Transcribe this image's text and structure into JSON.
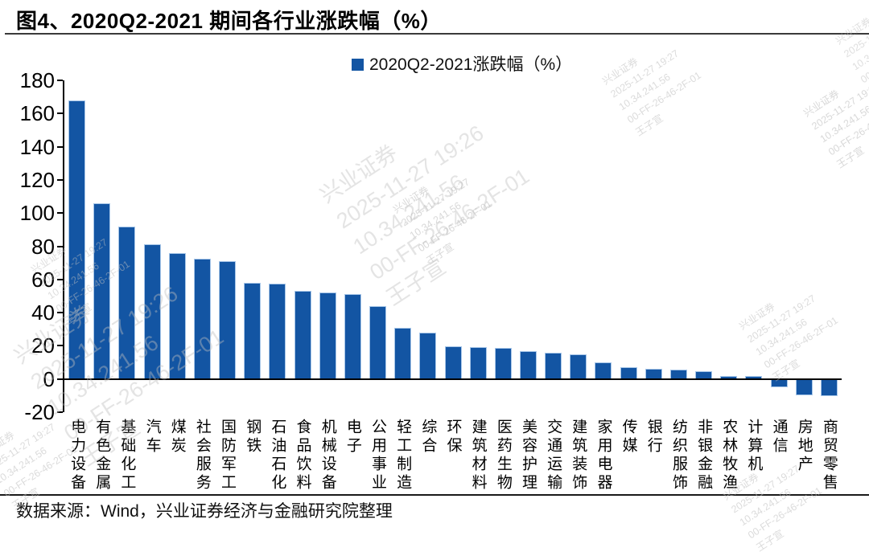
{
  "page": {
    "title": "图4、2020Q2-2021 期间各行业涨跌幅（%）",
    "source": "数据来源：Wind，兴业证券经济与金融研究院整理"
  },
  "legend": {
    "label": "2020Q2-2021涨跌幅（%）",
    "marker_color": "#1355a3"
  },
  "colors": {
    "bar_fill": "#1355a3",
    "bar_stroke": "#a7c6e8",
    "axis": "#000000"
  },
  "watermark": {
    "big_lines": [
      "兴业证券",
      "2025-11-27 19:26",
      "10.34.241.56",
      "00-FF-26-46-2F-01",
      "王子宣"
    ],
    "small_lines": [
      "兴业证券",
      "2025-11-27 19:27",
      "10.34.241.56",
      "00-FF-26-46-2F-01",
      "王子宣"
    ]
  },
  "chart_data": {
    "type": "bar",
    "title": "2020Q2-2021涨跌幅（%）",
    "legend_position": "top-center",
    "grid": false,
    "ylim": [
      -20,
      180
    ],
    "yticks": [
      180,
      160,
      140,
      120,
      100,
      80,
      60,
      40,
      20,
      0,
      -20
    ],
    "xlabel": "",
    "ylabel": "",
    "categories": [
      "电力设备",
      "有色金属",
      "基础化工",
      "汽车",
      "煤炭",
      "社会服务",
      "国防军工",
      "钢铁",
      "石油石化",
      "食品饮料",
      "机械设备",
      "电子",
      "公用事业",
      "轻工制造",
      "综合",
      "环保",
      "建筑材料",
      "医药生物",
      "美容护理",
      "交通运输",
      "建筑装饰",
      "家用电器",
      "传媒",
      "银行",
      "纺织服饰",
      "非银金融",
      "农林牧渔",
      "计算机",
      "通信",
      "房地产",
      "商贸零售"
    ],
    "values": [
      168,
      106,
      92,
      81,
      76,
      72.5,
      71,
      58,
      57.5,
      53,
      52,
      51,
      44,
      31,
      28,
      19.5,
      19,
      18.5,
      17,
      16,
      15,
      10,
      7,
      6,
      5.5,
      4.5,
      2,
      2,
      -5,
      -10,
      -10.5
    ]
  }
}
